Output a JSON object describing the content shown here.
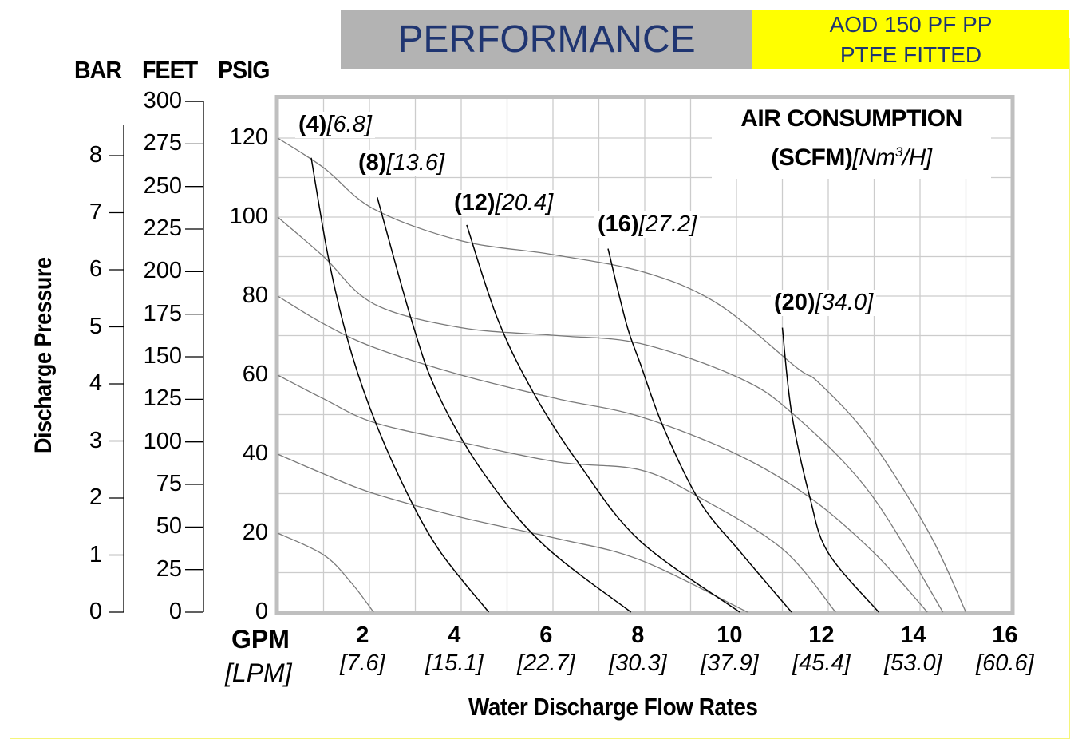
{
  "header": {
    "title": "PERFORMANCE",
    "model_line1": "AOD 150 PF PP",
    "model_line2": "PTFE FITTED"
  },
  "colors": {
    "header_gray": "#b3b3b3",
    "header_yellow": "#ffff00",
    "title_blue": "#1f3571",
    "head_curve": "#7a7a7a",
    "air_curve": "#000000",
    "grid": "#cccccc",
    "plot_frame": "#bfbfbf"
  },
  "chart_data": {
    "type": "line",
    "title": "PERFORMANCE",
    "xlabel": "Water Discharge Flow Rates",
    "x_unit_primary": "GPM",
    "x_unit_secondary": "[LPM]",
    "ylabel": "Discharge Pressure",
    "y_units": [
      "BAR",
      "FEET",
      "PSIG"
    ],
    "xlim": [
      0,
      16
    ],
    "ylim_psig": [
      0,
      130
    ],
    "grid": true,
    "x_ticks": [
      {
        "gpm": "2",
        "lpm": "[7.6]",
        "v": 2
      },
      {
        "gpm": "4",
        "lpm": "[15.1]",
        "v": 4
      },
      {
        "gpm": "6",
        "lpm": "[22.7]",
        "v": 6
      },
      {
        "gpm": "8",
        "lpm": "[30.3]",
        "v": 8
      },
      {
        "gpm": "10",
        "lpm": "[37.9]",
        "v": 10
      },
      {
        "gpm": "12",
        "lpm": "[45.4]",
        "v": 12
      },
      {
        "gpm": "14",
        "lpm": "[53.0]",
        "v": 14
      },
      {
        "gpm": "16",
        "lpm": "[60.6]",
        "v": 16
      }
    ],
    "psig_ticks": [
      "0",
      "20",
      "40",
      "60",
      "80",
      "100",
      "120"
    ],
    "feet_ticks": [
      "0",
      "25",
      "50",
      "75",
      "100",
      "125",
      "150",
      "175",
      "200",
      "225",
      "250",
      "275",
      "300"
    ],
    "bar_ticks": [
      "0",
      "1",
      "2",
      "3",
      "4",
      "5",
      "6",
      "7",
      "8"
    ],
    "air_legend": {
      "line1": "AIR CONSUMPTION",
      "line2_bold": "(SCFM)",
      "line2_italic": "[Nm",
      "line2_sup": "3",
      "line2_end": "/H]"
    },
    "head_curves": [
      {
        "name": "120 psig",
        "points": [
          [
            0,
            120
          ],
          [
            1,
            112.5
          ],
          [
            2.1,
            102
          ],
          [
            4,
            94
          ],
          [
            6,
            90.5
          ],
          [
            8,
            86
          ],
          [
            9.6,
            78
          ],
          [
            11.3,
            62
          ],
          [
            11.8,
            58
          ],
          [
            12.9,
            44
          ],
          [
            14.2,
            20
          ],
          [
            15,
            0
          ]
        ]
      },
      {
        "name": "100 psig",
        "points": [
          [
            0,
            100
          ],
          [
            1,
            90
          ],
          [
            2.1,
            78
          ],
          [
            4,
            72
          ],
          [
            6.1,
            70
          ],
          [
            7.9,
            68
          ],
          [
            10,
            59.6
          ],
          [
            11.2,
            50.5
          ],
          [
            12.9,
            30.3
          ],
          [
            14.5,
            0
          ]
        ]
      },
      {
        "name": "80 psig",
        "points": [
          [
            0,
            80
          ],
          [
            1,
            73
          ],
          [
            2.1,
            67
          ],
          [
            4,
            60
          ],
          [
            6.1,
            54
          ],
          [
            7.9,
            49.5
          ],
          [
            10,
            40
          ],
          [
            11.6,
            29
          ],
          [
            13,
            15
          ],
          [
            14.16,
            0
          ]
        ]
      },
      {
        "name": "60 psig",
        "points": [
          [
            0,
            60
          ],
          [
            1,
            54
          ],
          [
            2.1,
            48
          ],
          [
            4,
            43
          ],
          [
            6.1,
            38
          ],
          [
            7.9,
            36
          ],
          [
            9.2,
            29
          ],
          [
            11,
            16
          ],
          [
            12.16,
            0
          ]
        ]
      },
      {
        "name": "40 psig",
        "points": [
          [
            0,
            40
          ],
          [
            1,
            35
          ],
          [
            2.1,
            30
          ],
          [
            4,
            24
          ],
          [
            6.1,
            18.6
          ],
          [
            7.9,
            13.2
          ],
          [
            10.24,
            0
          ]
        ]
      },
      {
        "name": "20 psig",
        "points": [
          [
            0,
            20
          ],
          [
            1,
            14.5
          ],
          [
            1.6,
            7.5
          ],
          [
            2.09,
            0
          ]
        ]
      }
    ],
    "air_curves": [
      {
        "scfm": "(4)",
        "nm3h": "[6.8]",
        "points": [
          [
            0.73,
            115
          ],
          [
            1.1,
            90
          ],
          [
            1.5,
            70
          ],
          [
            2,
            52
          ],
          [
            2.7,
            33
          ],
          [
            3.5,
            16
          ],
          [
            4.6,
            0
          ]
        ]
      },
      {
        "scfm": "(8)",
        "nm3h": "[13.6]",
        "points": [
          [
            2.17,
            105
          ],
          [
            2.94,
            73
          ],
          [
            3.5,
            55
          ],
          [
            4.5,
            35
          ],
          [
            5.8,
            17
          ],
          [
            7.7,
            0
          ]
        ]
      },
      {
        "scfm": "(12)",
        "nm3h": "[20.4]",
        "points": [
          [
            4.12,
            98
          ],
          [
            4.8,
            74
          ],
          [
            5.6,
            55
          ],
          [
            6.6,
            37
          ],
          [
            7.9,
            18
          ],
          [
            10.07,
            0
          ]
        ]
      },
      {
        "scfm": "(16)",
        "nm3h": "[27.2]",
        "points": [
          [
            7.2,
            92
          ],
          [
            7.6,
            73
          ],
          [
            7.9,
            63
          ],
          [
            8.4,
            47
          ],
          [
            9.2,
            28
          ],
          [
            10.1,
            15
          ],
          [
            11.2,
            0
          ]
        ]
      },
      {
        "scfm": "(20)",
        "nm3h": "[34.0]",
        "points": [
          [
            11.0,
            72
          ],
          [
            11.2,
            50.5
          ],
          [
            11.6,
            29
          ],
          [
            12.0,
            15
          ],
          [
            13.1,
            0
          ]
        ]
      }
    ]
  }
}
